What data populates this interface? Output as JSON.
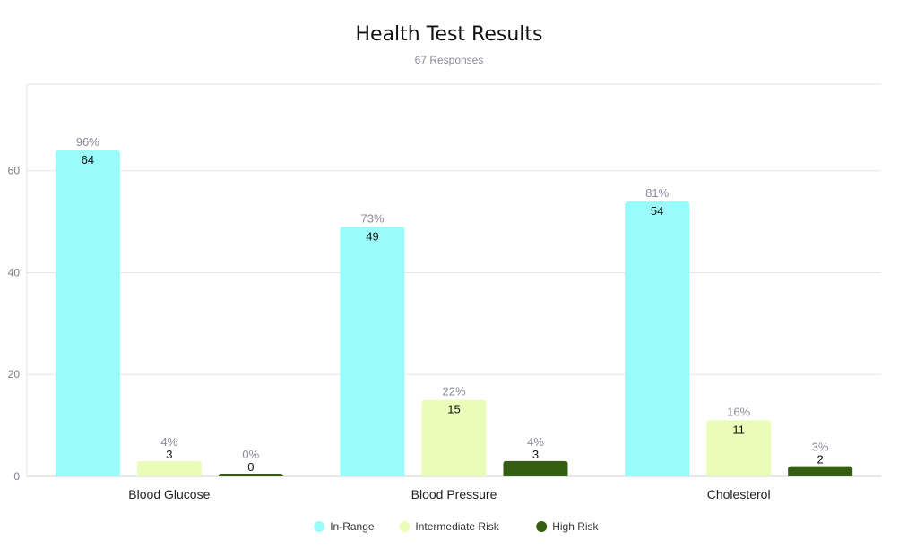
{
  "chart_data": {
    "type": "bar",
    "title": "Health Test Results",
    "subtitle": "67 Responses",
    "categories": [
      "Blood Glucose",
      "Blood Pressure",
      "Cholesterol"
    ],
    "series": [
      {
        "name": "In-Range",
        "color": "#99fbfa",
        "values": [
          64,
          49,
          54
        ],
        "percents": [
          "96%",
          "73%",
          "81%"
        ]
      },
      {
        "name": "Intermediate Risk",
        "color": "#eafdb8",
        "values": [
          3,
          15,
          11
        ],
        "percents": [
          "4%",
          "22%",
          "16%"
        ]
      },
      {
        "name": "High Risk",
        "color": "#355e12",
        "values": [
          0,
          3,
          2
        ],
        "percents": [
          "0%",
          "4%",
          "3%"
        ]
      }
    ],
    "yticks": [
      0,
      20,
      40,
      60
    ],
    "ylim": [
      0,
      77
    ],
    "grid": true,
    "legend_position": "bottom-center"
  }
}
